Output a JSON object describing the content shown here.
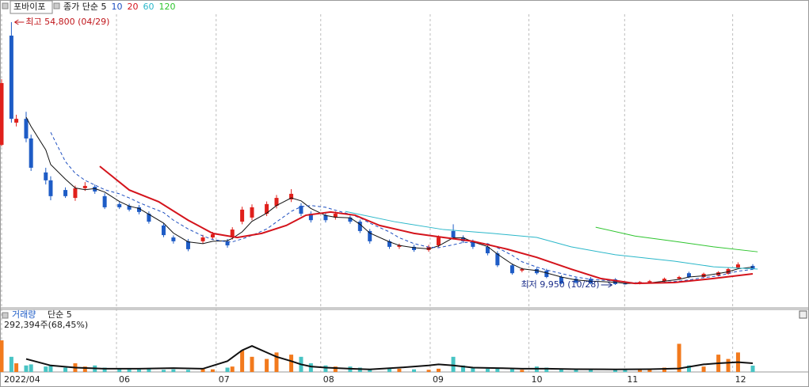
{
  "chart_data": {
    "type": "candlestick",
    "stock": "포바이포",
    "x": [
      0,
      2,
      3,
      5,
      6,
      9,
      10,
      13,
      15,
      17,
      19,
      21,
      24,
      26,
      28,
      30,
      33,
      35,
      38,
      41,
      43,
      46,
      47,
      49,
      51,
      54,
      56,
      59,
      61,
      63,
      66,
      68,
      71,
      73,
      75,
      79,
      81,
      84,
      87,
      89,
      92,
      94,
      96,
      99,
      101,
      104,
      106,
      109,
      111,
      114,
      117,
      120,
      125,
      127,
      130,
      132,
      135,
      138,
      140,
      143,
      146,
      148,
      150,
      153
    ],
    "open": [
      33850,
      52500,
      37650,
      38300,
      34950,
      29150,
      27800,
      26150,
      24800,
      26450,
      26700,
      25100,
      23750,
      23450,
      23200,
      22100,
      20100,
      18050,
      17400,
      17400,
      18050,
      17400,
      18050,
      20750,
      21450,
      22100,
      23450,
      24550,
      23450,
      22100,
      21850,
      21450,
      21450,
      20750,
      19150,
      17400,
      16450,
      16450,
      15900,
      16700,
      19150,
      18050,
      17400,
      16450,
      15350,
      13300,
      12400,
      12650,
      12400,
      11300,
      11000,
      11000,
      10900,
      10200,
      10200,
      10350,
      10600,
      11000,
      11950,
      11300,
      11550,
      11850,
      12900,
      13200
    ],
    "high": [
      45050,
      54800,
      39000,
      39500,
      35600,
      29950,
      28500,
      26600,
      26900,
      27500,
      27100,
      25600,
      24100,
      23800,
      23600,
      22500,
      20500,
      18400,
      17800,
      18500,
      19000,
      17800,
      19800,
      23300,
      23700,
      24200,
      25300,
      26300,
      23900,
      22500,
      22200,
      22500,
      21800,
      21100,
      19500,
      17700,
      17000,
      16800,
      16800,
      18400,
      20300,
      18400,
      17700,
      16800,
      15700,
      13600,
      12900,
      12900,
      12700,
      11600,
      11200,
      11300,
      11100,
      10400,
      10600,
      10800,
      11200,
      11500,
      12200,
      12050,
      12300,
      12900,
      13800,
      13500
    ],
    "low": [
      33600,
      37650,
      37000,
      34300,
      29400,
      27100,
      24400,
      24800,
      24300,
      26000,
      25500,
      22900,
      22900,
      22500,
      22000,
      20400,
      18100,
      17000,
      15700,
      17000,
      17700,
      16300,
      17700,
      20300,
      21000,
      21700,
      23000,
      24100,
      21700,
      20600,
      20600,
      21100,
      20400,
      18800,
      17000,
      16100,
      16100,
      15600,
      15600,
      16400,
      17700,
      17100,
      16100,
      15000,
      13000,
      11700,
      12100,
      11700,
      11100,
      10050,
      10150,
      10050,
      9950,
      10000,
      10050,
      10200,
      10450,
      10850,
      11100,
      11100,
      11400,
      11700,
      12700,
      12500
    ],
    "close": [
      44400,
      38300,
      38300,
      34950,
      29950,
      27800,
      25100,
      25100,
      26450,
      26850,
      25900,
      23200,
      23200,
      22800,
      22400,
      20750,
      18450,
      17400,
      16050,
      18050,
      18600,
      16700,
      19400,
      22800,
      23200,
      23750,
      24800,
      25500,
      22100,
      21000,
      21000,
      22100,
      20750,
      19150,
      17400,
      16450,
      16700,
      15900,
      16450,
      18050,
      18050,
      17400,
      16450,
      15350,
      13300,
      11950,
      12650,
      11950,
      11300,
      10200,
      10350,
      10200,
      10100,
      10050,
      10450,
      10600,
      11000,
      11300,
      11300,
      11850,
      12100,
      12650,
      13450,
      12650
    ],
    "up_color": "#e0201b",
    "down_color": "#1e5cc6",
    "xlim": [
      0,
      163
    ],
    "ylim": [
      6170,
      56150
    ],
    "grid": true,
    "xticks": [
      {
        "value": 0,
        "label": "2022/04"
      },
      {
        "value": 23.4,
        "label": "06"
      },
      {
        "value": 43.7,
        "label": "07"
      },
      {
        "value": 65,
        "label": "08"
      },
      {
        "value": 87.3,
        "label": "09"
      },
      {
        "value": 107.4,
        "label": "10"
      },
      {
        "value": 126.9,
        "label": "11"
      },
      {
        "value": 148.9,
        "label": "12"
      }
    ],
    "series": [
      {
        "name": "종가 단순 5",
        "color": "#111111",
        "line_style": "thin",
        "x": [
          5,
          6,
          9,
          10,
          13,
          15,
          17,
          19,
          21,
          24,
          26,
          28,
          30,
          33,
          35,
          38,
          41,
          43,
          46,
          47,
          49,
          51,
          54,
          56,
          59,
          61,
          63,
          66,
          68,
          71,
          73,
          75,
          79,
          81,
          84,
          87,
          89,
          92,
          94,
          96,
          99,
          101,
          104,
          106,
          109,
          111,
          114,
          117,
          120,
          125,
          127,
          130,
          132,
          135,
          138,
          140,
          143,
          146,
          148,
          150,
          153
        ],
        "values": [
          38600,
          37000,
          33000,
          30500,
          28000,
          26500,
          26200,
          26400,
          25800,
          24200,
          23400,
          23000,
          22000,
          20500,
          18800,
          17300,
          17000,
          17400,
          17500,
          17900,
          19000,
          20800,
          22200,
          23500,
          24800,
          24300,
          23000,
          21800,
          21500,
          21400,
          20300,
          18800,
          17300,
          16700,
          16300,
          16100,
          16600,
          18000,
          18000,
          17300,
          16500,
          15200,
          13500,
          12700,
          12400,
          12000,
          11300,
          10800,
          10600,
          10400,
          10200,
          10200,
          10300,
          10600,
          10900,
          11300,
          11500,
          11900,
          12200,
          12700,
          13000
        ]
      },
      {
        "name": "10",
        "color": "#1e4fc0",
        "line_style": "dashed",
        "x": [
          10,
          13,
          15,
          17,
          19,
          21,
          24,
          26,
          28,
          30,
          33,
          35,
          38,
          41,
          43,
          46,
          47,
          49,
          51,
          54,
          56,
          59,
          61,
          63,
          66,
          68,
          71,
          73,
          75,
          79,
          81,
          84,
          87,
          89,
          92,
          94,
          96,
          99,
          101,
          104,
          106,
          109,
          111,
          114,
          117,
          120,
          125,
          127,
          130,
          132,
          135,
          138,
          140,
          143,
          146,
          148,
          150,
          153
        ],
        "values": [
          36000,
          31000,
          29000,
          27800,
          27000,
          26200,
          25500,
          24800,
          24000,
          23300,
          22300,
          21000,
          19500,
          18300,
          17700,
          17300,
          17300,
          17800,
          18400,
          19500,
          20700,
          22500,
          23300,
          23500,
          23200,
          22700,
          22000,
          21400,
          20500,
          19000,
          18000,
          17000,
          16400,
          16300,
          16800,
          17200,
          17200,
          17000,
          16300,
          15000,
          13900,
          13000,
          12500,
          11900,
          11300,
          10900,
          10600,
          10400,
          10300,
          10300,
          10400,
          10600,
          10800,
          11200,
          11500,
          11900,
          12300,
          12600
        ]
      },
      {
        "name": "20",
        "color": "#d4141c",
        "line_style": "thick",
        "x": [
          20,
          26,
          32,
          38,
          43,
          48,
          53,
          58,
          62,
          67,
          72,
          77,
          84,
          90,
          96,
          103,
          109,
          116,
          122,
          129,
          137,
          145,
          153
        ],
        "values": [
          30200,
          26150,
          24150,
          21000,
          18750,
          18050,
          18750,
          20100,
          21850,
          22400,
          21850,
          20100,
          18750,
          18050,
          17400,
          16050,
          14650,
          12650,
          11050,
          10200,
          10350,
          11050,
          11850
        ]
      },
      {
        "name": "60",
        "color": "#2ab7c9",
        "line_style": "thin",
        "x": [
          70,
          80,
          90,
          100,
          109,
          116,
          125,
          137,
          145,
          154
        ],
        "values": [
          22500,
          20750,
          19400,
          18750,
          18050,
          16450,
          15100,
          14000,
          13050,
          12650
        ]
      },
      {
        "name": "120",
        "color": "#2ec52e",
        "line_style": "thin",
        "x": [
          121,
          129,
          137,
          145,
          154
        ],
        "values": [
          19800,
          18300,
          17400,
          16450,
          15600
        ]
      }
    ],
    "annotations": [
      {
        "text": "최고 54,800 (04/29)",
        "color": "#c0161b"
      },
      {
        "text": "최저 9,950 (10/28)",
        "color": "#1c2f8a"
      }
    ],
    "volume": {
      "title": "거래량",
      "ma_name": "단순 5",
      "current": "292,394주(68,45%)",
      "ylim": [
        0,
        2740000
      ],
      "up_color": "#f27a1d",
      "down_color": "#48c4c4",
      "values": [
        1460000,
        700000,
        400000,
        300000,
        350000,
        250000,
        300000,
        200000,
        400000,
        250000,
        300000,
        200000,
        150000,
        180000,
        120000,
        150000,
        100000,
        120000,
        100000,
        150000,
        120000,
        200000,
        250000,
        1000000,
        700000,
        600000,
        900000,
        800000,
        700000,
        400000,
        300000,
        250000,
        250000,
        200000,
        150000,
        200000,
        150000,
        120000,
        100000,
        150000,
        700000,
        300000,
        200000,
        150000,
        150000,
        150000,
        100000,
        250000,
        200000,
        150000,
        150000,
        100000,
        100000,
        100000,
        100000,
        100000,
        200000,
        1300000,
        300000,
        250000,
        800000,
        600000,
        900000,
        292394
      ],
      "ma": {
        "color": "#111111",
        "x": [
          5,
          10,
          15,
          21,
          28,
          35,
          41,
          46,
          49,
          51,
          54,
          56,
          59,
          61,
          63,
          66,
          71,
          75,
          81,
          87,
          89,
          92,
          96,
          101,
          106,
          111,
          117,
          125,
          132,
          138,
          143,
          146,
          150,
          153
        ],
        "values": [
          600000,
          300000,
          200000,
          150000,
          150000,
          180000,
          150000,
          500000,
          1000000,
          1200000,
          900000,
          700000,
          500000,
          350000,
          250000,
          200000,
          150000,
          120000,
          200000,
          300000,
          350000,
          300000,
          200000,
          180000,
          150000,
          150000,
          130000,
          120000,
          130000,
          160000,
          350000,
          400000,
          450000,
          400000
        ]
      }
    }
  }
}
